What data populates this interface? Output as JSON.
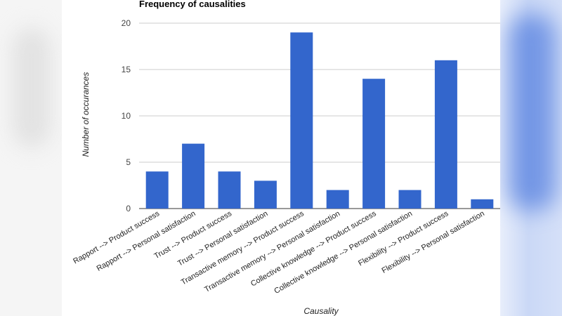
{
  "chart_data": {
    "type": "bar",
    "title": "Frequency of causalities",
    "xlabel": "Causality",
    "ylabel": "Number of occurances",
    "ylim": [
      0,
      20
    ],
    "yticks": [
      0,
      5,
      10,
      15,
      20
    ],
    "categories": [
      "Rapport --> Product success",
      "Rapport --> Personal satisfaction",
      "Trust --> Product success",
      "Trust --> Personal satisfaction",
      "Transactive memory --> Product success",
      "Transactive memory --> Personal satisfaction",
      "Collective knowledge --> Product success",
      "Collective knowledge --> Personal satisfaction",
      "Flexibility --> Product success",
      "Flexibility --> Personal satisfaction"
    ],
    "values": [
      4,
      7,
      4,
      3,
      19,
      2,
      14,
      2,
      16,
      1
    ],
    "bar_color": "#3366cc",
    "grid": true
  }
}
